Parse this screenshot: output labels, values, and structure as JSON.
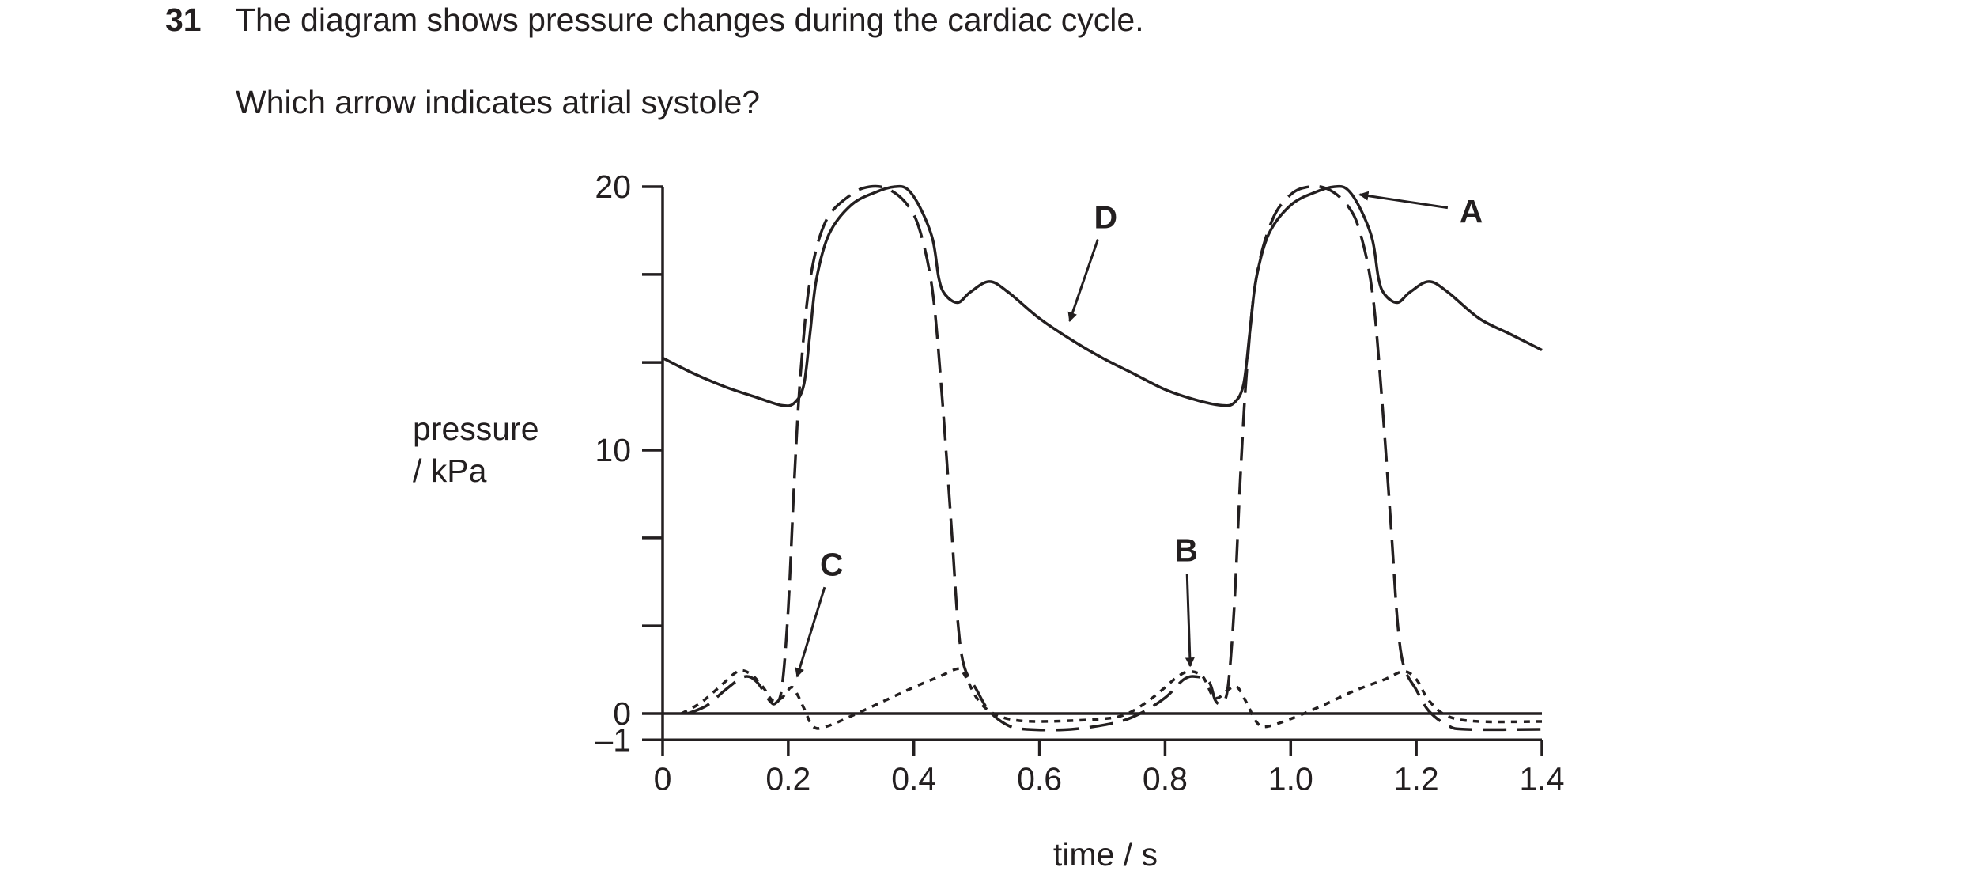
{
  "question": {
    "number": "31",
    "text": "The diagram shows pressure changes during the cardiac cycle.",
    "prompt": "Which arrow indicates atrial systole?"
  },
  "chart_data": {
    "type": "line",
    "xlabel": "time / s",
    "ylabel": [
      "pressure",
      "/ kPa"
    ],
    "xlim": [
      0,
      1.4
    ],
    "ylim": [
      -1,
      20
    ],
    "x_ticks": [
      "0",
      "0.2",
      "0.4",
      "0.6",
      "0.8",
      "1.0",
      "1.2",
      "1.4"
    ],
    "y_ticks": [
      "20",
      "10",
      "0",
      "–1"
    ],
    "y_minor_ticks": [
      16.67,
      13.33,
      6.67,
      3.33
    ],
    "color": "#231f20",
    "series": [
      {
        "style": "solid",
        "points": [
          [
            0,
            13.5
          ],
          [
            0.05,
            12.9
          ],
          [
            0.1,
            12.4
          ],
          [
            0.15,
            12.0
          ],
          [
            0.19,
            11.7
          ],
          [
            0.21,
            11.8
          ],
          [
            0.225,
            12.5
          ],
          [
            0.235,
            14.5
          ],
          [
            0.245,
            16.5
          ],
          [
            0.265,
            18.2
          ],
          [
            0.3,
            19.3
          ],
          [
            0.34,
            19.8
          ],
          [
            0.37,
            20.0
          ],
          [
            0.39,
            19.9
          ],
          [
            0.41,
            19.2
          ],
          [
            0.43,
            18.0
          ],
          [
            0.44,
            16.5
          ],
          [
            0.45,
            15.9
          ],
          [
            0.47,
            15.6
          ],
          [
            0.49,
            16.0
          ],
          [
            0.52,
            16.4
          ],
          [
            0.55,
            16.0
          ],
          [
            0.6,
            15.0
          ],
          [
            0.65,
            14.2
          ],
          [
            0.7,
            13.5
          ],
          [
            0.75,
            12.9
          ],
          [
            0.8,
            12.3
          ],
          [
            0.85,
            11.9
          ],
          [
            0.89,
            11.7
          ],
          [
            0.91,
            11.8
          ],
          [
            0.925,
            12.5
          ],
          [
            0.935,
            14.5
          ],
          [
            0.945,
            16.5
          ],
          [
            0.965,
            18.2
          ],
          [
            1.0,
            19.3
          ],
          [
            1.04,
            19.8
          ],
          [
            1.07,
            20.0
          ],
          [
            1.09,
            19.9
          ],
          [
            1.11,
            19.2
          ],
          [
            1.13,
            18.0
          ],
          [
            1.14,
            16.5
          ],
          [
            1.15,
            15.9
          ],
          [
            1.17,
            15.6
          ],
          [
            1.19,
            16.0
          ],
          [
            1.22,
            16.4
          ],
          [
            1.25,
            16.0
          ],
          [
            1.3,
            15.0
          ],
          [
            1.35,
            14.4
          ],
          [
            1.4,
            13.8
          ]
        ]
      },
      {
        "style": "dashed",
        "points": [
          [
            0.04,
            0
          ],
          [
            0.07,
            0.3
          ],
          [
            0.1,
            0.9
          ],
          [
            0.13,
            1.4
          ],
          [
            0.15,
            1.2
          ],
          [
            0.17,
            0.5
          ],
          [
            0.18,
            0.4
          ],
          [
            0.19,
            1.0
          ],
          [
            0.2,
            4.0
          ],
          [
            0.21,
            9.0
          ],
          [
            0.22,
            13.0
          ],
          [
            0.235,
            16.5
          ],
          [
            0.26,
            18.7
          ],
          [
            0.3,
            19.7
          ],
          [
            0.33,
            20.0
          ],
          [
            0.36,
            19.9
          ],
          [
            0.39,
            19.3
          ],
          [
            0.41,
            18.3
          ],
          [
            0.43,
            16.0
          ],
          [
            0.445,
            12.0
          ],
          [
            0.46,
            7.0
          ],
          [
            0.47,
            3.5
          ],
          [
            0.48,
            1.8
          ],
          [
            0.5,
            0.9
          ],
          [
            0.52,
            0.1
          ],
          [
            0.55,
            -0.45
          ],
          [
            0.58,
            -0.6
          ],
          [
            0.65,
            -0.6
          ],
          [
            0.72,
            -0.35
          ],
          [
            0.76,
            0
          ],
          [
            0.8,
            0.6
          ],
          [
            0.83,
            1.3
          ],
          [
            0.85,
            1.4
          ],
          [
            0.87,
            1.2
          ],
          [
            0.88,
            0.5
          ],
          [
            0.89,
            0.4
          ],
          [
            0.9,
            1.0
          ],
          [
            0.91,
            4.0
          ],
          [
            0.92,
            9.0
          ],
          [
            0.93,
            13.0
          ],
          [
            0.945,
            16.5
          ],
          [
            0.97,
            18.7
          ],
          [
            1.0,
            19.7
          ],
          [
            1.03,
            20.0
          ],
          [
            1.06,
            19.9
          ],
          [
            1.09,
            19.3
          ],
          [
            1.11,
            18.3
          ],
          [
            1.13,
            16.0
          ],
          [
            1.145,
            12.0
          ],
          [
            1.16,
            7.0
          ],
          [
            1.17,
            3.5
          ],
          [
            1.18,
            1.8
          ],
          [
            1.2,
            0.9
          ],
          [
            1.22,
            0.1
          ],
          [
            1.25,
            -0.45
          ],
          [
            1.28,
            -0.6
          ],
          [
            1.4,
            -0.6
          ]
        ]
      },
      {
        "style": "dotted",
        "points": [
          [
            0.03,
            0
          ],
          [
            0.06,
            0.4
          ],
          [
            0.09,
            1.0
          ],
          [
            0.12,
            1.6
          ],
          [
            0.14,
            1.5
          ],
          [
            0.16,
            1.0
          ],
          [
            0.175,
            0.5
          ],
          [
            0.19,
            0.6
          ],
          [
            0.205,
            1.0
          ],
          [
            0.215,
            0.7
          ],
          [
            0.225,
            0.2
          ],
          [
            0.24,
            -0.5
          ],
          [
            0.26,
            -0.5
          ],
          [
            0.3,
            -0.1
          ],
          [
            0.35,
            0.45
          ],
          [
            0.4,
            1.0
          ],
          [
            0.44,
            1.4
          ],
          [
            0.47,
            1.7
          ],
          [
            0.48,
            1.5
          ],
          [
            0.5,
            0.6
          ],
          [
            0.52,
            0.1
          ],
          [
            0.55,
            -0.2
          ],
          [
            0.6,
            -0.3
          ],
          [
            0.7,
            -0.2
          ],
          [
            0.74,
            0
          ],
          [
            0.78,
            0.6
          ],
          [
            0.82,
            1.4
          ],
          [
            0.84,
            1.6
          ],
          [
            0.86,
            1.4
          ],
          [
            0.875,
            0.7
          ],
          [
            0.885,
            0.6
          ],
          [
            0.9,
            0.9
          ],
          [
            0.915,
            1.0
          ],
          [
            0.93,
            0.4
          ],
          [
            0.945,
            -0.3
          ],
          [
            0.96,
            -0.5
          ],
          [
            1.0,
            -0.2
          ],
          [
            1.05,
            0.3
          ],
          [
            1.1,
            0.85
          ],
          [
            1.15,
            1.3
          ],
          [
            1.18,
            1.6
          ],
          [
            1.2,
            1.3
          ],
          [
            1.22,
            0.5
          ],
          [
            1.25,
            -0.1
          ],
          [
            1.3,
            -0.3
          ],
          [
            1.4,
            -0.3
          ]
        ]
      }
    ],
    "annotations": [
      {
        "label": "A",
        "from": [
          1.25,
          19.2
        ],
        "to": [
          1.11,
          19.7
        ]
      },
      {
        "label": "B",
        "from": [
          0.835,
          5.3
        ],
        "to": [
          0.84,
          1.8
        ]
      },
      {
        "label": "C",
        "from": [
          0.258,
          4.8
        ],
        "to": [
          0.214,
          1.4
        ]
      },
      {
        "label": "D",
        "from": [
          0.693,
          18.0
        ],
        "to": [
          0.648,
          14.9
        ]
      }
    ]
  }
}
